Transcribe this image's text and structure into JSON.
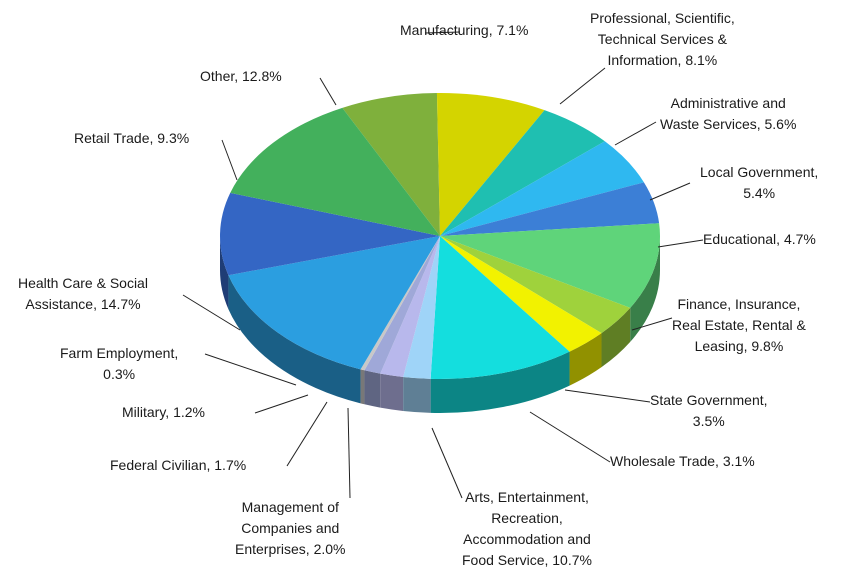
{
  "chart_data": {
    "type": "pie",
    "title": "",
    "slices": [
      {
        "label": "Manufacturing, 7.1%",
        "lines": [
          "Manufacturing, 7.1%"
        ],
        "value": 7.1,
        "color": "#7fb03c"
      },
      {
        "label": "Professional, Scientific, Technical Services & Information, 8.1%",
        "lines": [
          "Professional, Scientific,",
          "Technical Services &",
          "Information, 8.1%"
        ],
        "value": 8.1,
        "color": "#d4d400"
      },
      {
        "label": "Administrative and Waste Services, 5.6%",
        "lines": [
          "Administrative and",
          "Waste Services, 5.6%"
        ],
        "value": 5.6,
        "color": "#1fbfb1"
      },
      {
        "label": "Local Government, 5.4%",
        "lines": [
          "Local Government,",
          "5.4%"
        ],
        "value": 5.4,
        "color": "#2fb8f0"
      },
      {
        "label": "Educational, 4.7%",
        "lines": [
          "Educational, 4.7%"
        ],
        "value": 4.7,
        "color": "#3c7fd6"
      },
      {
        "label": "Finance, Insurance, Real Estate, Rental & Leasing, 9.8%",
        "lines": [
          "Finance, Insurance,",
          "Real Estate, Rental &",
          "Leasing, 9.8%"
        ],
        "value": 9.8,
        "color": "#5fd47a"
      },
      {
        "label": "State Government, 3.5%",
        "lines": [
          "State Government,",
          "3.5%"
        ],
        "value": 3.5,
        "color": "#9fd23c"
      },
      {
        "label": "Wholesale Trade, 3.1%",
        "lines": [
          "Wholesale Trade, 3.1%"
        ],
        "value": 3.1,
        "color": "#f2f200"
      },
      {
        "label": "Arts, Entertainment, Recreation, Accommodation and Food Service, 10.7%",
        "lines": [
          "Arts, Entertainment,",
          "Recreation,",
          "Accommodation and",
          "Food Service, 10.7%"
        ],
        "value": 10.7,
        "color": "#14dede"
      },
      {
        "label": "Management of Companies and Enterprises, 2.0%",
        "lines": [
          "Management of",
          "Companies and",
          "Enterprises, 2.0%"
        ],
        "value": 2.0,
        "color": "#9fd4f8"
      },
      {
        "label": "Federal Civilian, 1.7%",
        "lines": [
          "Federal Civilian, 1.7%"
        ],
        "value": 1.7,
        "color": "#b8b8ec"
      },
      {
        "label": "Military, 1.2%",
        "lines": [
          "Military, 1.2%"
        ],
        "value": 1.2,
        "color": "#9fa8d8"
      },
      {
        "label": "Farm Employment, 0.3%",
        "lines": [
          "Farm Employment,",
          "0.3%"
        ],
        "value": 0.3,
        "color": "#c8c8c8"
      },
      {
        "label": "Health Care & Social Assistance, 14.7%",
        "lines": [
          "Health Care & Social",
          "Assistance, 14.7%"
        ],
        "value": 14.7,
        "color": "#2b9ee0"
      },
      {
        "label": "Retail Trade, 9.3%",
        "lines": [
          "Retail Trade, 9.3%"
        ],
        "value": 9.3,
        "color": "#3466c4"
      },
      {
        "label": "Other, 12.8%",
        "lines": [
          "Other, 12.8%"
        ],
        "value": 12.8,
        "color": "#43b05c"
      }
    ]
  }
}
